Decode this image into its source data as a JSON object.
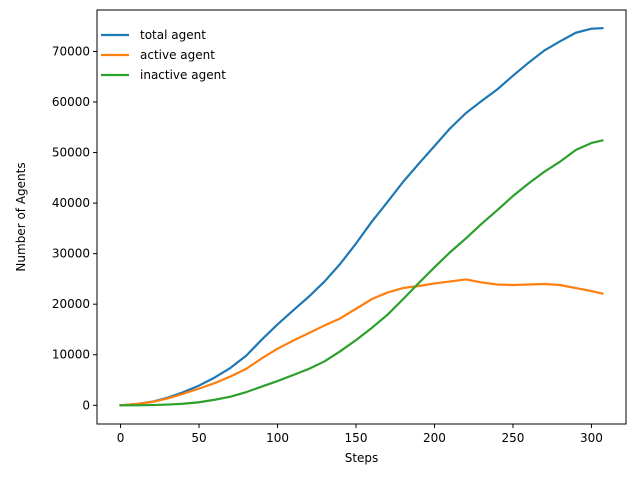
{
  "chart_data": {
    "type": "line",
    "title": "",
    "xlabel": "Steps",
    "ylabel": "Number of Agents",
    "xlim": [
      -15,
      322
    ],
    "ylim": [
      -3700,
      78200
    ],
    "xticks": [
      0,
      50,
      100,
      150,
      200,
      250,
      300
    ],
    "yticks": [
      0,
      10000,
      20000,
      30000,
      40000,
      50000,
      60000,
      70000
    ],
    "grid": false,
    "legend_position": "upper-left",
    "series": [
      {
        "name": "total agent",
        "color": "#1f77b4",
        "x": [
          0,
          10,
          20,
          30,
          40,
          50,
          60,
          70,
          80,
          90,
          100,
          110,
          120,
          130,
          140,
          150,
          160,
          170,
          180,
          190,
          200,
          210,
          220,
          230,
          240,
          250,
          260,
          270,
          280,
          290,
          300,
          307
        ],
        "y": [
          0,
          250,
          700,
          1500,
          2600,
          3900,
          5500,
          7400,
          9800,
          13000,
          16000,
          18800,
          21500,
          24500,
          28000,
          32000,
          36300,
          40200,
          44200,
          47800,
          51300,
          54800,
          57800,
          60200,
          62500,
          65200,
          67800,
          70200,
          72000,
          73700,
          74500,
          74600
        ]
      },
      {
        "name": "active agent",
        "color": "#ff7f0e",
        "x": [
          0,
          10,
          20,
          30,
          40,
          50,
          60,
          70,
          80,
          90,
          100,
          110,
          120,
          130,
          140,
          150,
          160,
          170,
          180,
          190,
          200,
          210,
          220,
          230,
          240,
          250,
          260,
          270,
          280,
          290,
          300,
          307
        ],
        "y": [
          0,
          250,
          650,
          1350,
          2300,
          3300,
          4400,
          5700,
          7200,
          9300,
          11200,
          12800,
          14300,
          15800,
          17200,
          19100,
          21000,
          22300,
          23200,
          23600,
          24100,
          24500,
          24900,
          24300,
          23900,
          23800,
          23900,
          24000,
          23800,
          23200,
          22600,
          22100
        ]
      },
      {
        "name": "inactive agent",
        "color": "#2ca02c",
        "x": [
          0,
          10,
          20,
          30,
          40,
          50,
          60,
          70,
          80,
          90,
          100,
          110,
          120,
          130,
          140,
          150,
          160,
          170,
          180,
          190,
          200,
          210,
          220,
          230,
          240,
          250,
          260,
          270,
          280,
          290,
          300,
          307
        ],
        "y": [
          0,
          0,
          50,
          150,
          300,
          600,
          1100,
          1700,
          2600,
          3700,
          4800,
          6000,
          7200,
          8700,
          10700,
          12900,
          15300,
          17900,
          21000,
          24200,
          27300,
          30300,
          33000,
          35900,
          38600,
          41400,
          43900,
          46200,
          48200,
          50500,
          51900,
          52400
        ]
      }
    ]
  }
}
